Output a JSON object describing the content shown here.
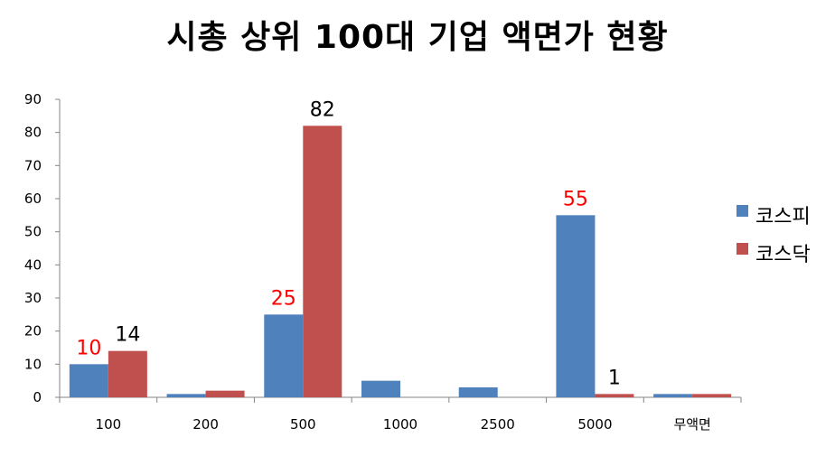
{
  "chart_data": {
    "type": "bar",
    "title": "시총 상위 100대 기업 액면가 현황",
    "xlabel": "",
    "ylabel": "",
    "categories": [
      "100",
      "200",
      "500",
      "1000",
      "2500",
      "5000",
      "무액면"
    ],
    "series": [
      {
        "name": "코스피",
        "color": "#4F81BD",
        "values": [
          10,
          1,
          25,
          5,
          3,
          55,
          1
        ]
      },
      {
        "name": "코스닥",
        "color": "#C0504D",
        "values": [
          14,
          2,
          82,
          0,
          0,
          1,
          1
        ]
      }
    ],
    "ylim": [
      0,
      90
    ],
    "yticks": [
      0,
      10,
      20,
      30,
      40,
      50,
      60,
      70,
      80,
      90
    ],
    "grid": false,
    "legend_position": "right",
    "data_labels": [
      {
        "series": 0,
        "category": 0,
        "text": "10",
        "color": "#FF0000"
      },
      {
        "series": 1,
        "category": 0,
        "text": "14",
        "color": "#000000"
      },
      {
        "series": 0,
        "category": 2,
        "text": "25",
        "color": "#FF0000"
      },
      {
        "series": 1,
        "category": 2,
        "text": "82",
        "color": "#000000"
      },
      {
        "series": 0,
        "category": 5,
        "text": "55",
        "color": "#FF0000"
      },
      {
        "series": 1,
        "category": 5,
        "text": "1",
        "color": "#000000"
      }
    ]
  }
}
